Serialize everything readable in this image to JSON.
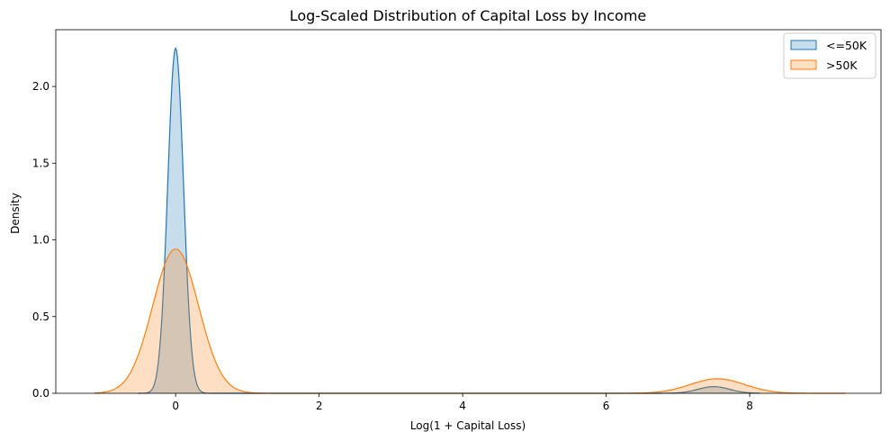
{
  "chart_data": {
    "type": "area",
    "title": "Log-Scaled Distribution of Capital Loss by Income",
    "xlabel": "Log(1 + Capital Loss)",
    "ylabel": "Density",
    "xlim": [
      -1.67,
      9.83
    ],
    "ylim": [
      0,
      2.37
    ],
    "x_ticks": [
      0,
      2,
      4,
      6,
      8
    ],
    "y_ticks": [
      0.0,
      0.5,
      1.0,
      1.5,
      2.0
    ],
    "x_tick_labels": [
      "0",
      "2",
      "4",
      "6",
      "8"
    ],
    "y_tick_labels": [
      "0.0",
      "0.5",
      "1.0",
      "1.5",
      "2.0"
    ],
    "grid": false,
    "legend_position": "top-right",
    "series": [
      {
        "name": "<=50K",
        "color": "#1f77b4",
        "fill_opacity": 0.25,
        "x_range": [
          -0.52,
          8.14
        ],
        "components": [
          {
            "mu": 0.0,
            "sigma": 0.11,
            "weight": 0.62
          },
          {
            "mu": 7.5,
            "sigma": 0.22,
            "weight": 0.024
          }
        ]
      },
      {
        "name": ">50K",
        "color": "#ff7f0e",
        "fill_opacity": 0.25,
        "x_range": [
          -1.13,
          9.33
        ],
        "components": [
          {
            "mu": 0.0,
            "sigma": 0.32,
            "weight": 0.754
          },
          {
            "mu": 7.55,
            "sigma": 0.38,
            "weight": 0.09
          }
        ]
      }
    ]
  }
}
